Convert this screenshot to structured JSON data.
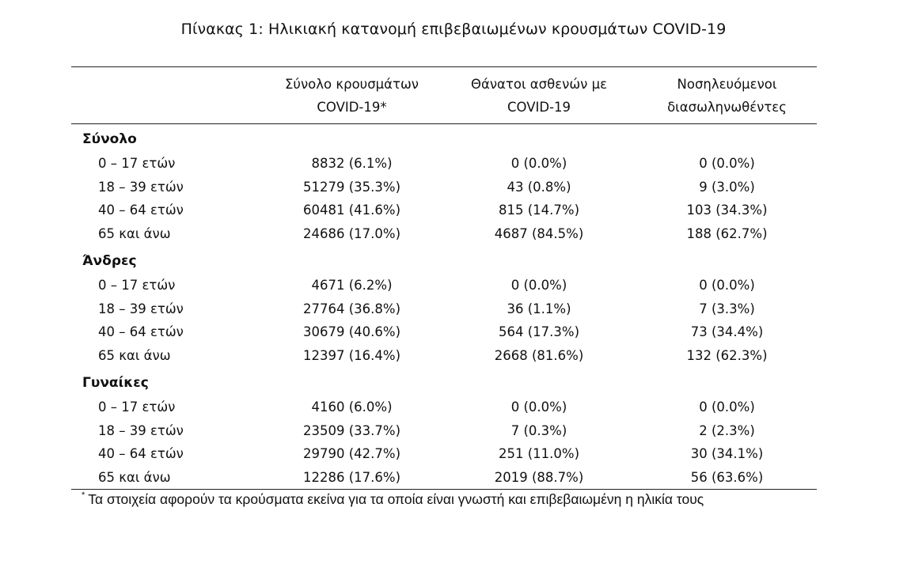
{
  "caption": "Πίνακας 1: Ηλικιακή κατανομή επιβεβαιωμένων κρουσμάτων COVID-19",
  "headers": [
    {
      "line1": "Σύνολο κρουσμάτων",
      "line2": "COVID-19*"
    },
    {
      "line1": "Θάνατοι ασθενών με",
      "line2": "COVID-19"
    },
    {
      "line1": "Νοσηλευόμενοι",
      "line2": "διασωληνωθέντες"
    }
  ],
  "groups": [
    {
      "label": "Σύνολο",
      "rows": [
        {
          "age": "0 – 17 ετών",
          "cases": "8832 (6.1%)",
          "deaths": "0 (0.0%)",
          "intubated": "0 (0.0%)"
        },
        {
          "age": "18 – 39 ετών",
          "cases": "51279 (35.3%)",
          "deaths": "43 (0.8%)",
          "intubated": "9 (3.0%)"
        },
        {
          "age": "40 – 64 ετών",
          "cases": "60481 (41.6%)",
          "deaths": "815 (14.7%)",
          "intubated": "103 (34.3%)"
        },
        {
          "age": "65 και άνω",
          "cases": "24686 (17.0%)",
          "deaths": "4687 (84.5%)",
          "intubated": "188 (62.7%)"
        }
      ]
    },
    {
      "label": "Άνδρες",
      "rows": [
        {
          "age": "0 – 17 ετών",
          "cases": "4671 (6.2%)",
          "deaths": "0 (0.0%)",
          "intubated": "0 (0.0%)"
        },
        {
          "age": "18 – 39 ετών",
          "cases": "27764 (36.8%)",
          "deaths": "36 (1.1%)",
          "intubated": "7 (3.3%)"
        },
        {
          "age": "40 – 64 ετών",
          "cases": "30679 (40.6%)",
          "deaths": "564 (17.3%)",
          "intubated": "73 (34.4%)"
        },
        {
          "age": "65 και άνω",
          "cases": "12397 (16.4%)",
          "deaths": "2668 (81.6%)",
          "intubated": "132 (62.3%)"
        }
      ]
    },
    {
      "label": "Γυναίκες",
      "rows": [
        {
          "age": "0 – 17 ετών",
          "cases": "4160 (6.0%)",
          "deaths": "0 (0.0%)",
          "intubated": "0 (0.0%)"
        },
        {
          "age": "18 – 39 ετών",
          "cases": "23509 (33.7%)",
          "deaths": "7 (0.3%)",
          "intubated": "2 (2.3%)"
        },
        {
          "age": "40 – 64 ετών",
          "cases": "29790 (42.7%)",
          "deaths": "251 (11.0%)",
          "intubated": "30 (34.1%)"
        },
        {
          "age": "65 και άνω",
          "cases": "12286 (17.6%)",
          "deaths": "2019 (88.7%)",
          "intubated": "56 (63.6%)"
        }
      ]
    }
  ],
  "footnote": {
    "marker": "*",
    "text": "Τα στοιχεία αφορούν τα κρούσματα εκείνα για τα οποία είναι γνωστή και επιβεβαιωμένη η ηλικία τους"
  }
}
